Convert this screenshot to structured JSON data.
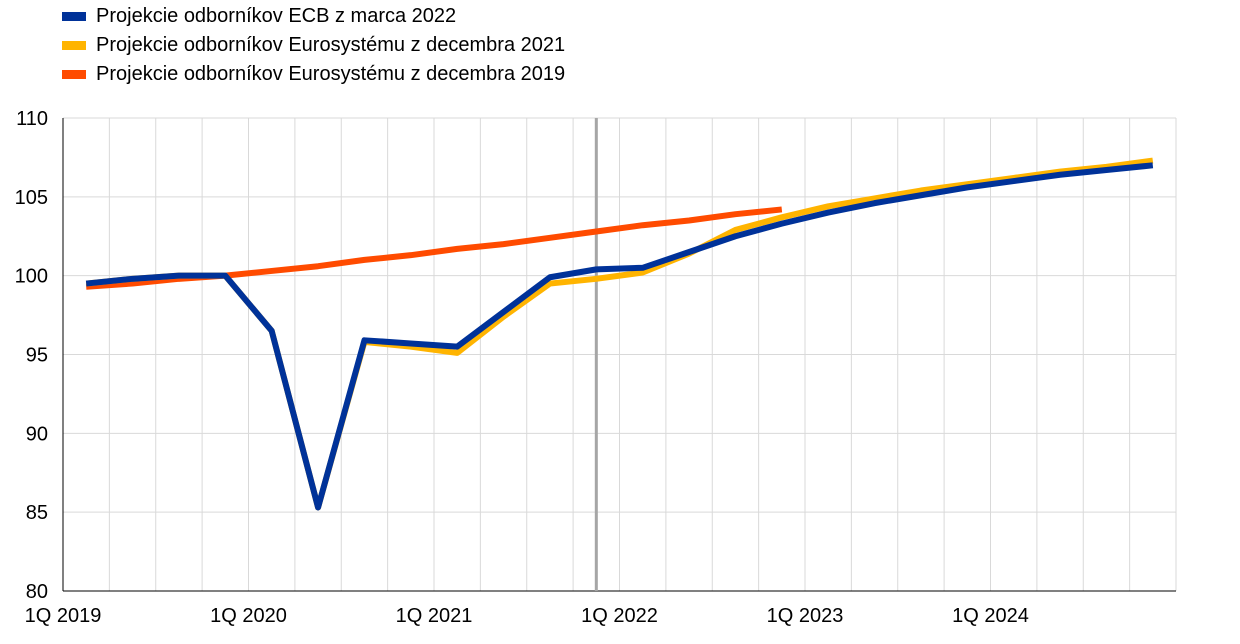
{
  "chart_data": {
    "type": "line",
    "title": "",
    "xlabel": "",
    "ylabel": "",
    "ylim": [
      80,
      110
    ],
    "yticks": [
      80,
      85,
      90,
      95,
      100,
      105,
      110
    ],
    "x": [
      "1Q 2019",
      "2Q 2019",
      "3Q 2019",
      "4Q 2019",
      "1Q 2020",
      "2Q 2020",
      "3Q 2020",
      "4Q 2020",
      "1Q 2021",
      "2Q 2021",
      "3Q 2021",
      "4Q 2021",
      "1Q 2022",
      "2Q 2022",
      "3Q 2022",
      "4Q 2022",
      "1Q 2023",
      "2Q 2023",
      "3Q 2023",
      "4Q 2023",
      "1Q 2024",
      "2Q 2024",
      "3Q 2024",
      "4Q 2024"
    ],
    "xtick_labels": [
      "1Q 2019",
      "1Q 2020",
      "1Q 2021",
      "1Q 2022",
      "1Q 2023",
      "1Q 2024"
    ],
    "grid": true,
    "legend_position": "top-left",
    "vertical_marker": {
      "label": "4Q 2021 / 1Q 2022 boundary",
      "color": "#a6a6a6"
    },
    "series": [
      {
        "name": "Projekcie odborníkov Eurosystému z decembra 2019",
        "color": "#ff4b00",
        "values": [
          99.3,
          99.5,
          99.8,
          100.0,
          100.3,
          100.6,
          101.0,
          101.3,
          101.7,
          102.0,
          102.4,
          102.8,
          103.2,
          103.5,
          103.9,
          104.2,
          null,
          null,
          null,
          null,
          null,
          null,
          null,
          null
        ]
      },
      {
        "name": "Projekcie odborníkov Eurosystému z decembra 2021",
        "color": "#ffb400",
        "values": [
          99.5,
          99.8,
          100.0,
          100.0,
          96.5,
          85.3,
          95.8,
          95.5,
          95.1,
          97.4,
          99.5,
          99.8,
          100.2,
          101.4,
          102.9,
          103.7,
          104.4,
          104.9,
          105.4,
          105.8,
          106.2,
          106.6,
          106.9,
          107.3
        ]
      },
      {
        "name": "Projekcie odborníkov ECB z marca 2022",
        "color": "#003299",
        "values": [
          99.5,
          99.8,
          100.0,
          100.0,
          96.5,
          85.3,
          95.9,
          95.7,
          95.5,
          97.7,
          99.9,
          100.4,
          100.5,
          101.5,
          102.5,
          103.3,
          104.0,
          104.6,
          105.1,
          105.6,
          106.0,
          106.4,
          106.7,
          107.0
        ]
      }
    ],
    "legend_order": [
      "Projekcie odborníkov ECB z marca 2022",
      "Projekcie odborníkov Eurosystému z decembra 2021",
      "Projekcie odborníkov Eurosystému z decembra 2019"
    ],
    "gridline_color": "#d9d9d9",
    "axis_color": "#000000"
  }
}
